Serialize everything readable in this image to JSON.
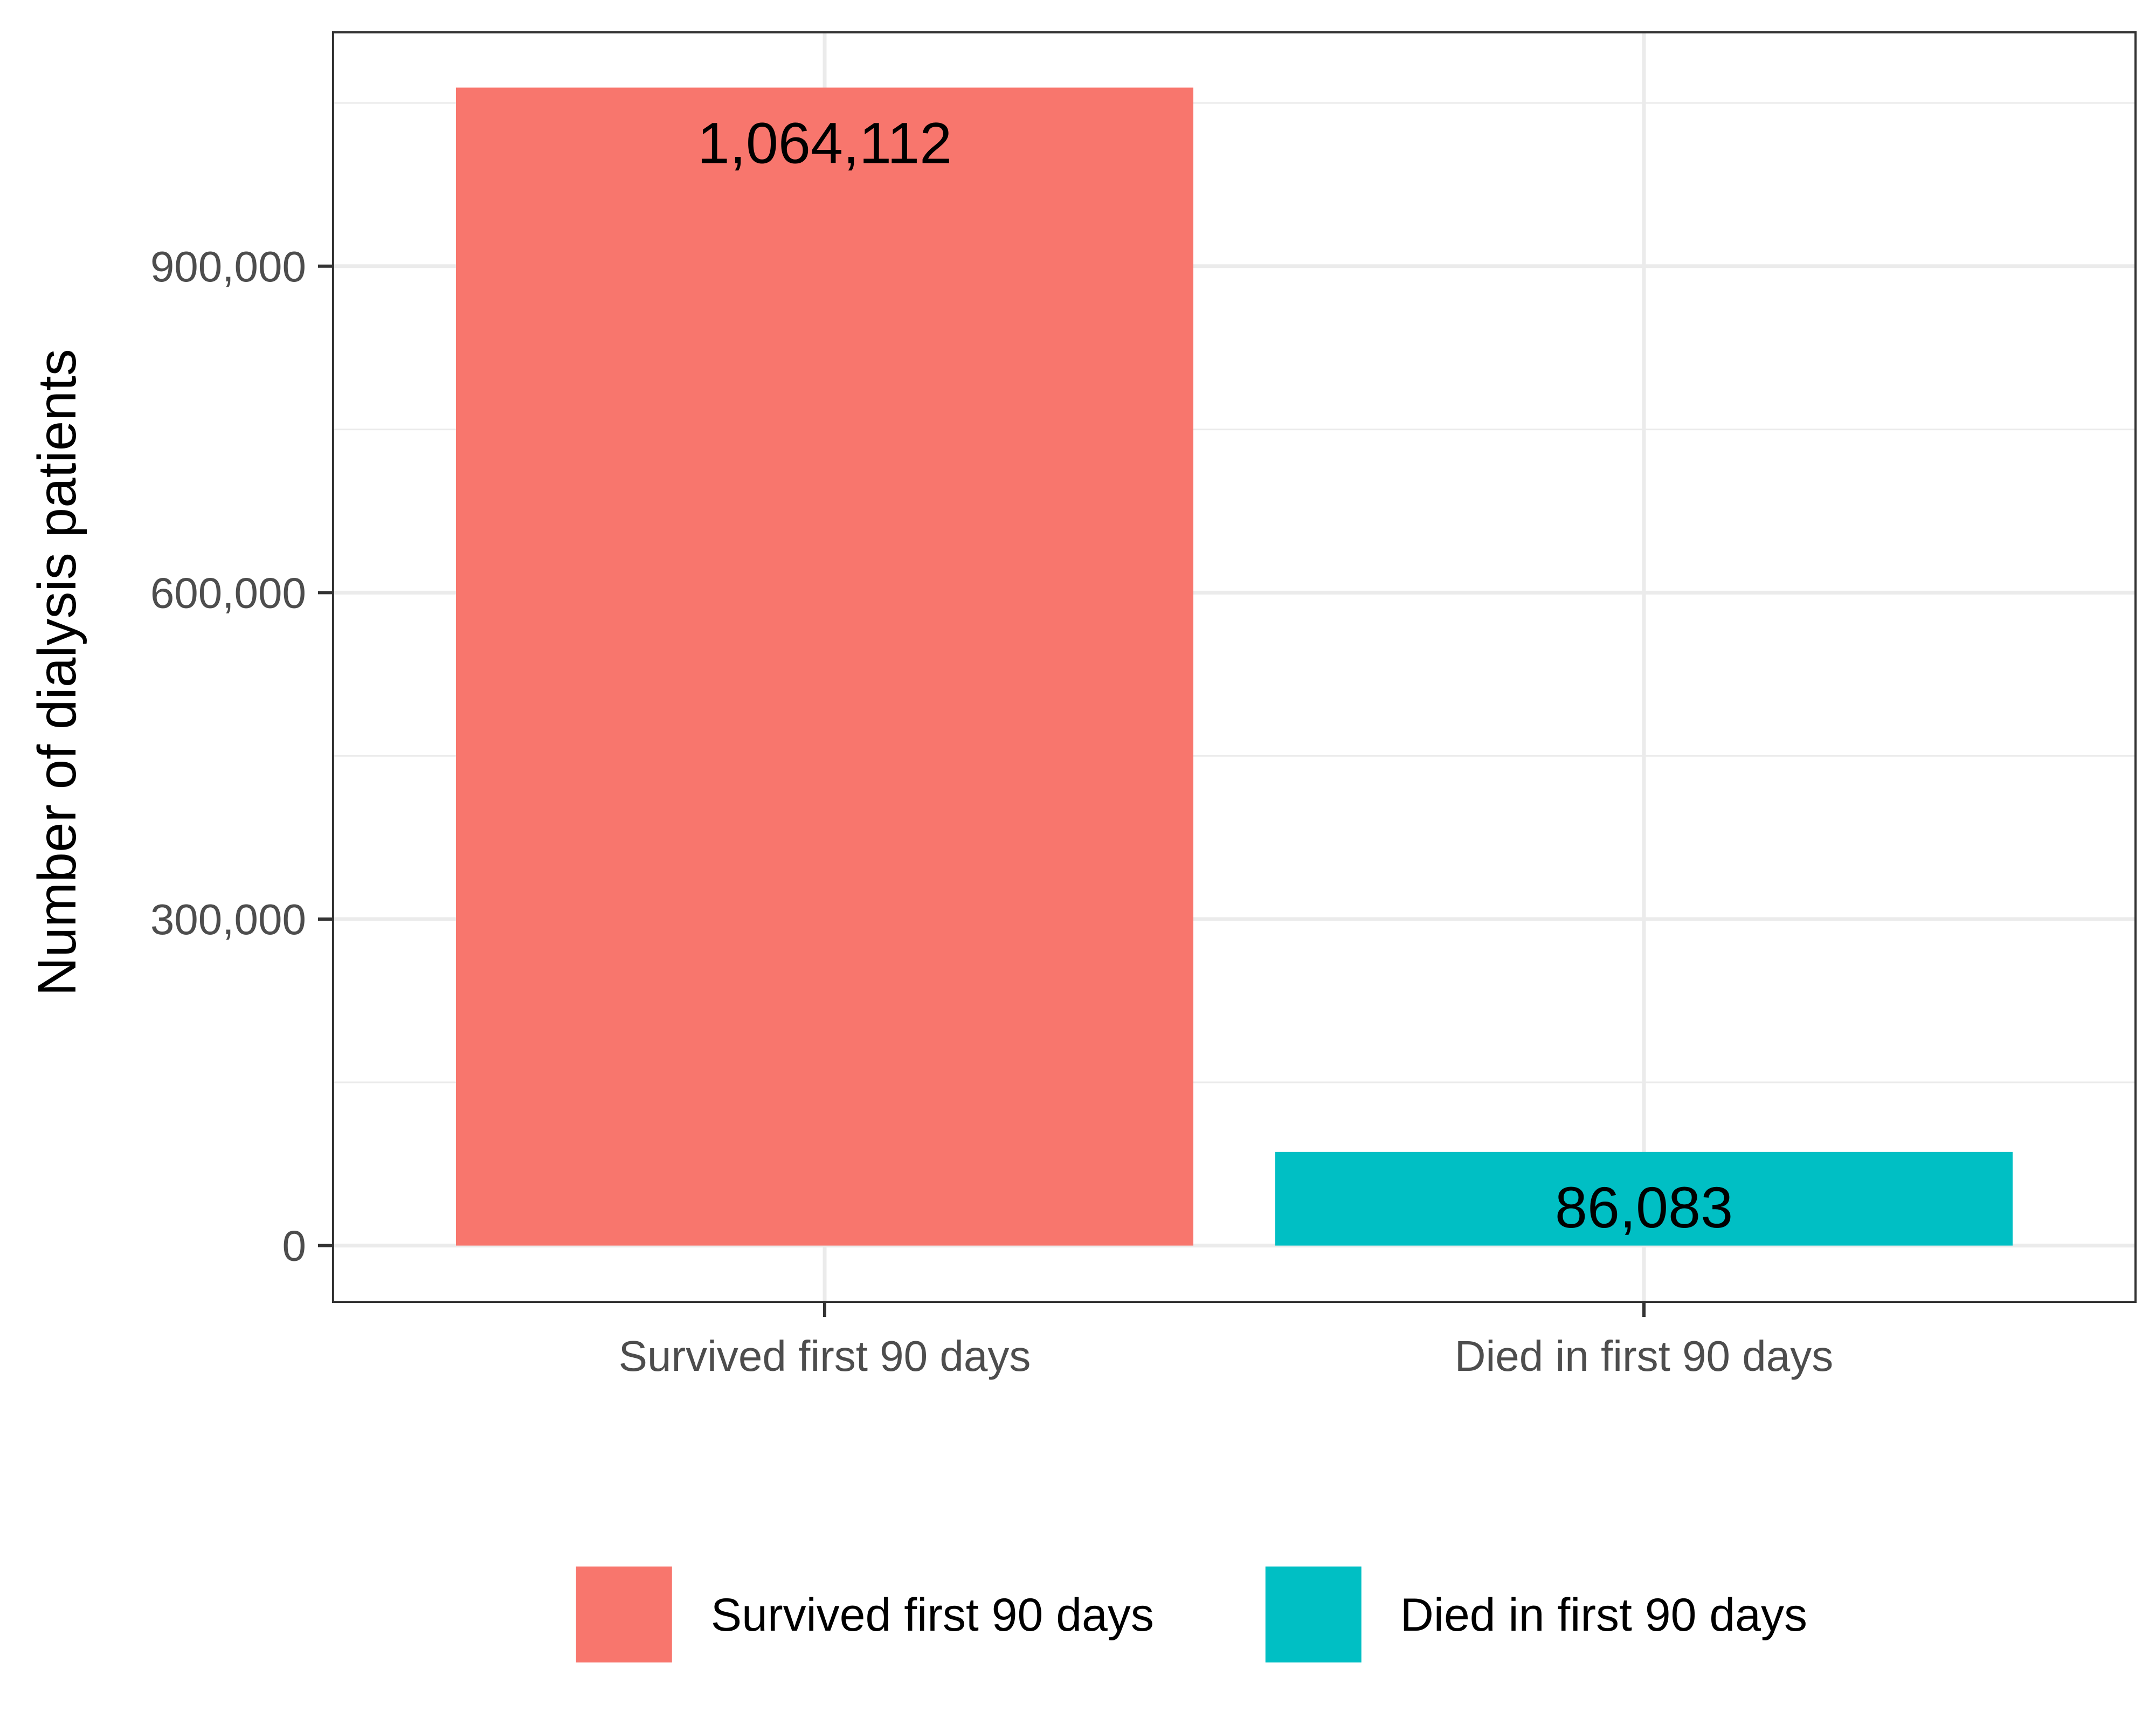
{
  "chart_data": {
    "type": "bar",
    "title": "",
    "xlabel": "",
    "ylabel": "Number of dialysis patients",
    "categories": [
      "Survived first 90 days",
      "Died in first 90 days"
    ],
    "values": [
      1064112,
      86083
    ],
    "value_labels": [
      "1,064,112",
      "86,083"
    ],
    "colors": [
      "#F8766D",
      "#00BFC4"
    ],
    "ylim": [
      -51706,
      1114894
    ],
    "yticks": [
      0,
      300000,
      600000,
      900000
    ],
    "ytick_labels": [
      "0",
      "300,000",
      "600,000",
      "900,000"
    ],
    "grid": true,
    "legend": {
      "position": "bottom",
      "entries": [
        {
          "label": "Survived first 90 days",
          "color": "#F8766D"
        },
        {
          "label": "Died in first 90 days",
          "color": "#00BFC4"
        }
      ]
    }
  }
}
